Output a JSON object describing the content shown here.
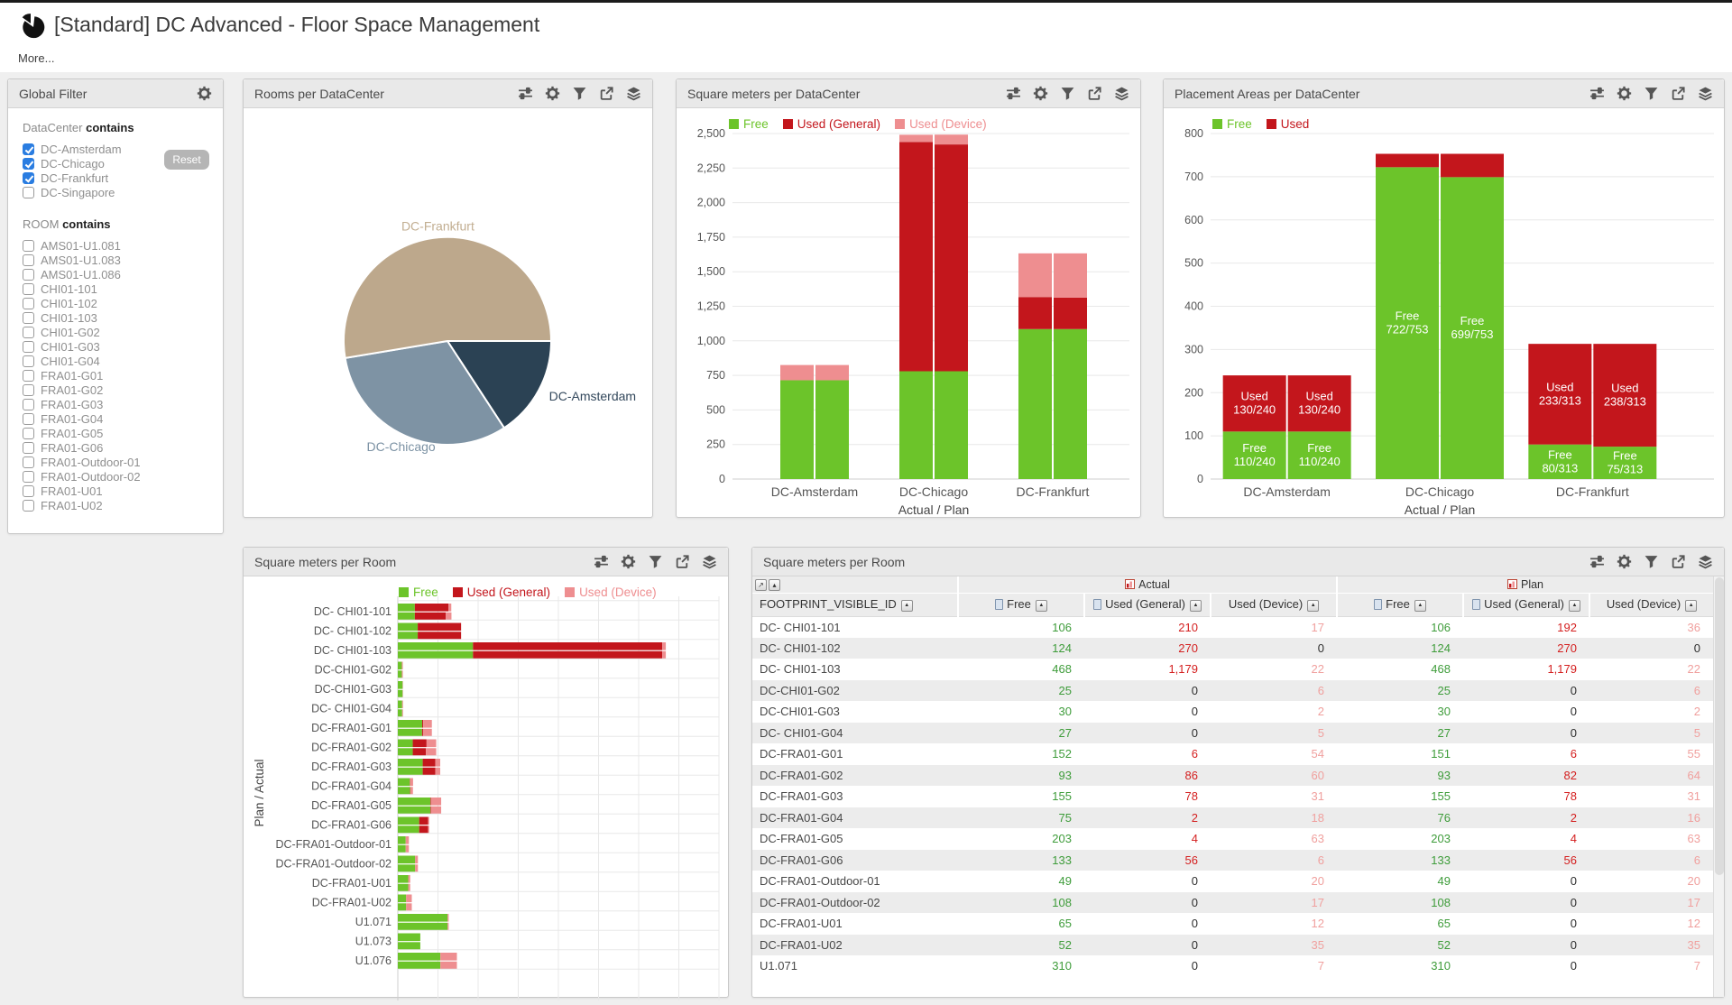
{
  "page": {
    "title": "[Standard] DC Advanced - Floor Space Management",
    "more_label": "More..."
  },
  "colors": {
    "free_green": "#6CC42A",
    "used_general_red": "#C3161C",
    "used_device_pink": "#EE8E90",
    "pie_frankfurt": "#BDA88C",
    "pie_chicago": "#7E93A4",
    "pie_amsterdam": "#2B4254"
  },
  "panels": {
    "filter": {
      "title": "Global Filter",
      "icons": [
        "gear"
      ]
    },
    "pie": {
      "title": "Rooms per DataCenter",
      "icons": [
        "adjust",
        "gear",
        "filter",
        "export",
        "layers"
      ]
    },
    "sqm": {
      "title": "Square meters per DataCenter",
      "icons": [
        "adjust",
        "gear",
        "filter",
        "export",
        "layers"
      ]
    },
    "placement": {
      "title": "Placement Areas per DataCenter",
      "icons": [
        "adjust",
        "gear",
        "filter",
        "export",
        "layers"
      ]
    },
    "rooms": {
      "title": "Square meters per Room",
      "icons": [
        "adjust",
        "gear",
        "filter",
        "export",
        "layers"
      ]
    },
    "table": {
      "title": "Square meters per Room",
      "icons": [
        "adjust",
        "gear",
        "filter",
        "export",
        "layers"
      ]
    }
  },
  "global_filter": {
    "reset_label": "Reset",
    "sections": [
      {
        "prefix": "DataCenter",
        "keyword": "contains",
        "options": [
          {
            "label": "DC-Amsterdam",
            "checked": true
          },
          {
            "label": "DC-Chicago",
            "checked": true
          },
          {
            "label": "DC-Frankfurt",
            "checked": true
          },
          {
            "label": "DC-Singapore",
            "checked": false
          }
        ]
      },
      {
        "prefix": "ROOM",
        "keyword": "contains",
        "options": [
          {
            "label": "AMS01-U1.081",
            "checked": false
          },
          {
            "label": "AMS01-U1.083",
            "checked": false
          },
          {
            "label": "AMS01-U1.086",
            "checked": false
          },
          {
            "label": "CHI01-101",
            "checked": false
          },
          {
            "label": "CHI01-102",
            "checked": false
          },
          {
            "label": "CHI01-103",
            "checked": false
          },
          {
            "label": "CHI01-G02",
            "checked": false
          },
          {
            "label": "CHI01-G03",
            "checked": false
          },
          {
            "label": "CHI01-G04",
            "checked": false
          },
          {
            "label": "FRA01-G01",
            "checked": false
          },
          {
            "label": "FRA01-G02",
            "checked": false
          },
          {
            "label": "FRA01-G03",
            "checked": false
          },
          {
            "label": "FRA01-G04",
            "checked": false
          },
          {
            "label": "FRA01-G05",
            "checked": false
          },
          {
            "label": "FRA01-G06",
            "checked": false
          },
          {
            "label": "FRA01-Outdoor-01",
            "checked": false
          },
          {
            "label": "FRA01-Outdoor-02",
            "checked": false
          },
          {
            "label": "FRA01-U01",
            "checked": false
          },
          {
            "label": "FRA01-U02",
            "checked": false
          }
        ]
      }
    ]
  },
  "chart_data": [
    {
      "type": "pie",
      "title": "Rooms per DataCenter",
      "slices": [
        {
          "label": "DC-Amsterdam",
          "value": 3,
          "color": "#2B4254",
          "label_color": "#33485C"
        },
        {
          "label": "DC-Chicago",
          "value": 6,
          "color": "#7E93A4",
          "label_color": "#7C92A4"
        },
        {
          "label": "DC-Frankfurt",
          "value": 10,
          "color": "#BDA88C",
          "label_color": "#C2AE91"
        }
      ],
      "start_deg": 0
    },
    {
      "type": "bar",
      "subtype": "stacked-pairs-vertical",
      "title": "Square meters per DataCenter",
      "xlabel": "Actual / Plan",
      "ylim": [
        0,
        2500
      ],
      "ytick_step": 250,
      "grid": true,
      "legend": [
        {
          "label": "Free",
          "color": "#6CC42A"
        },
        {
          "label": "Used (General)",
          "color": "#C3161C"
        },
        {
          "label": "Used (Device)",
          "color": "#EE8E90"
        }
      ],
      "categories": [
        "DC-Amsterdam",
        "DC-Chicago",
        "DC-Frankfurt"
      ],
      "bars": [
        {
          "category": "DC-Amsterdam",
          "actual": [
            715,
            0,
            110
          ],
          "plan": [
            715,
            0,
            110
          ]
        },
        {
          "category": "DC-Chicago",
          "actual": [
            780,
            1659,
            52
          ],
          "plan": [
            780,
            1641,
            71
          ]
        },
        {
          "category": "DC-Frankfurt",
          "actual": [
            1085,
            232,
            316
          ],
          "plan": [
            1085,
            228,
            320
          ]
        }
      ]
    },
    {
      "type": "bar",
      "subtype": "stacked-pairs-vertical",
      "title": "Placement Areas per DataCenter",
      "xlabel": "Actual / Plan",
      "ylim": [
        0,
        800
      ],
      "ytick_step": 100,
      "grid": true,
      "legend": [
        {
          "label": "Free",
          "color": "#6CC42A"
        },
        {
          "label": "Used",
          "color": "#C3161C"
        }
      ],
      "categories": [
        "DC-Amsterdam",
        "DC-Chicago",
        "DC-Frankfurt"
      ],
      "bars": [
        {
          "category": "DC-Amsterdam",
          "actual": [
            110,
            130
          ],
          "plan": [
            110,
            130
          ],
          "actual_labels": [
            "Free\n110/240",
            "Used\n130/240"
          ],
          "plan_labels": [
            "Free\n110/240",
            "Used\n130/240"
          ]
        },
        {
          "category": "DC-Chicago",
          "actual": [
            722,
            31
          ],
          "plan": [
            699,
            54
          ],
          "actual_labels": [
            "Free\n722/753",
            ""
          ],
          "plan_labels": [
            "Free\n699/753",
            ""
          ]
        },
        {
          "category": "DC-Frankfurt",
          "actual": [
            80,
            233
          ],
          "plan": [
            75,
            238
          ],
          "actual_labels": [
            "Free\n80/313",
            "Used\n233/313"
          ],
          "plan_labels": [
            "Free\n75/313",
            "Used\n238/313"
          ]
        }
      ]
    },
    {
      "type": "bar",
      "subtype": "stacked-pairs-horizontal",
      "title": "Square meters per Room",
      "ylabel": "Plan / Actual",
      "xlim": [
        0,
        2000
      ],
      "xtick_step": 250,
      "grid": true,
      "legend": [
        {
          "label": "Free",
          "color": "#6CC42A"
        },
        {
          "label": "Used (General)",
          "color": "#C3161C"
        },
        {
          "label": "Used (Device)",
          "color": "#EE8E90"
        }
      ],
      "rows": [
        {
          "label": "DC- CHI01-101",
          "actual": [
            106,
            210,
            17
          ],
          "plan": [
            106,
            192,
            36
          ]
        },
        {
          "label": "DC- CHI01-102",
          "actual": [
            124,
            270,
            0
          ],
          "plan": [
            124,
            270,
            0
          ]
        },
        {
          "label": "DC- CHI01-103",
          "actual": [
            468,
            1179,
            22
          ],
          "plan": [
            468,
            1179,
            22
          ]
        },
        {
          "label": "DC-CHI01-G02",
          "actual": [
            25,
            0,
            6
          ],
          "plan": [
            25,
            0,
            6
          ]
        },
        {
          "label": "DC-CHI01-G03",
          "actual": [
            30,
            0,
            2
          ],
          "plan": [
            30,
            0,
            2
          ]
        },
        {
          "label": "DC- CHI01-G04",
          "actual": [
            27,
            0,
            5
          ],
          "plan": [
            27,
            0,
            5
          ]
        },
        {
          "label": "DC-FRA01-G01",
          "actual": [
            152,
            6,
            54
          ],
          "plan": [
            151,
            6,
            55
          ]
        },
        {
          "label": "DC-FRA01-G02",
          "actual": [
            93,
            86,
            60
          ],
          "plan": [
            93,
            82,
            64
          ]
        },
        {
          "label": "DC-FRA01-G03",
          "actual": [
            155,
            78,
            31
          ],
          "plan": [
            155,
            78,
            31
          ]
        },
        {
          "label": "DC-FRA01-G04",
          "actual": [
            75,
            2,
            18
          ],
          "plan": [
            76,
            2,
            16
          ]
        },
        {
          "label": "DC-FRA01-G05",
          "actual": [
            203,
            4,
            63
          ],
          "plan": [
            203,
            4,
            63
          ]
        },
        {
          "label": "DC-FRA01-G06",
          "actual": [
            133,
            56,
            6
          ],
          "plan": [
            133,
            56,
            6
          ]
        },
        {
          "label": "DC-FRA01-Outdoor-01",
          "actual": [
            49,
            0,
            20
          ],
          "plan": [
            49,
            0,
            20
          ]
        },
        {
          "label": "DC-FRA01-Outdoor-02",
          "actual": [
            108,
            0,
            17
          ],
          "plan": [
            108,
            0,
            17
          ]
        },
        {
          "label": "DC-FRA01-U01",
          "actual": [
            65,
            0,
            12
          ],
          "plan": [
            65,
            0,
            12
          ]
        },
        {
          "label": "DC-FRA01-U02",
          "actual": [
            52,
            0,
            35
          ],
          "plan": [
            52,
            0,
            35
          ]
        },
        {
          "label": "U1.071",
          "actual": [
            310,
            0,
            7
          ],
          "plan": [
            310,
            0,
            7
          ]
        },
        {
          "label": "U1.073",
          "actual": [
            140,
            0,
            0
          ],
          "plan": [
            140,
            0,
            0
          ]
        },
        {
          "label": "U1.076",
          "actual": [
            265,
            0,
            103
          ],
          "plan": [
            265,
            0,
            103
          ]
        }
      ]
    }
  ],
  "table": {
    "id_header": "FOOTPRINT_VISIBLE_ID",
    "groups": [
      {
        "label": "Actual",
        "span": 3
      },
      {
        "label": "Plan",
        "span": 3
      }
    ],
    "value_columns": [
      {
        "label": "Free",
        "icon": true
      },
      {
        "label": "Used (General)",
        "icon": true
      },
      {
        "label": "Used (Device)",
        "icon": false
      },
      {
        "label": "Free",
        "icon": true
      },
      {
        "label": "Used (General)",
        "icon": true
      },
      {
        "label": "Used (Device)",
        "icon": false
      }
    ],
    "rows": [
      {
        "id": "DC- CHI01-101",
        "values": [
          106,
          210,
          17,
          106,
          192,
          36
        ]
      },
      {
        "id": "DC- CHI01-102",
        "values": [
          124,
          270,
          0,
          124,
          270,
          0
        ]
      },
      {
        "id": "DC- CHI01-103",
        "values": [
          468,
          1179,
          22,
          468,
          1179,
          22
        ]
      },
      {
        "id": "DC-CHI01-G02",
        "values": [
          25,
          0,
          6,
          25,
          0,
          6
        ]
      },
      {
        "id": "DC-CHI01-G03",
        "values": [
          30,
          0,
          2,
          30,
          0,
          2
        ]
      },
      {
        "id": "DC- CHI01-G04",
        "values": [
          27,
          0,
          5,
          27,
          0,
          5
        ]
      },
      {
        "id": "DC-FRA01-G01",
        "values": [
          152,
          6,
          54,
          151,
          6,
          55
        ]
      },
      {
        "id": "DC-FRA01-G02",
        "values": [
          93,
          86,
          60,
          93,
          82,
          64
        ]
      },
      {
        "id": "DC-FRA01-G03",
        "values": [
          155,
          78,
          31,
          155,
          78,
          31
        ]
      },
      {
        "id": "DC-FRA01-G04",
        "values": [
          75,
          2,
          18,
          76,
          2,
          16
        ]
      },
      {
        "id": "DC-FRA01-G05",
        "values": [
          203,
          4,
          63,
          203,
          4,
          63
        ]
      },
      {
        "id": "DC-FRA01-G06",
        "values": [
          133,
          56,
          6,
          133,
          56,
          6
        ]
      },
      {
        "id": "DC-FRA01-Outdoor-01",
        "values": [
          49,
          0,
          20,
          49,
          0,
          20
        ]
      },
      {
        "id": "DC-FRA01-Outdoor-02",
        "values": [
          108,
          0,
          17,
          108,
          0,
          17
        ]
      },
      {
        "id": "DC-FRA01-U01",
        "values": [
          65,
          0,
          12,
          65,
          0,
          12
        ]
      },
      {
        "id": "DC-FRA01-U02",
        "values": [
          52,
          0,
          35,
          52,
          0,
          35
        ]
      },
      {
        "id": "U1.071",
        "values": [
          310,
          0,
          7,
          310,
          0,
          7
        ]
      }
    ]
  }
}
